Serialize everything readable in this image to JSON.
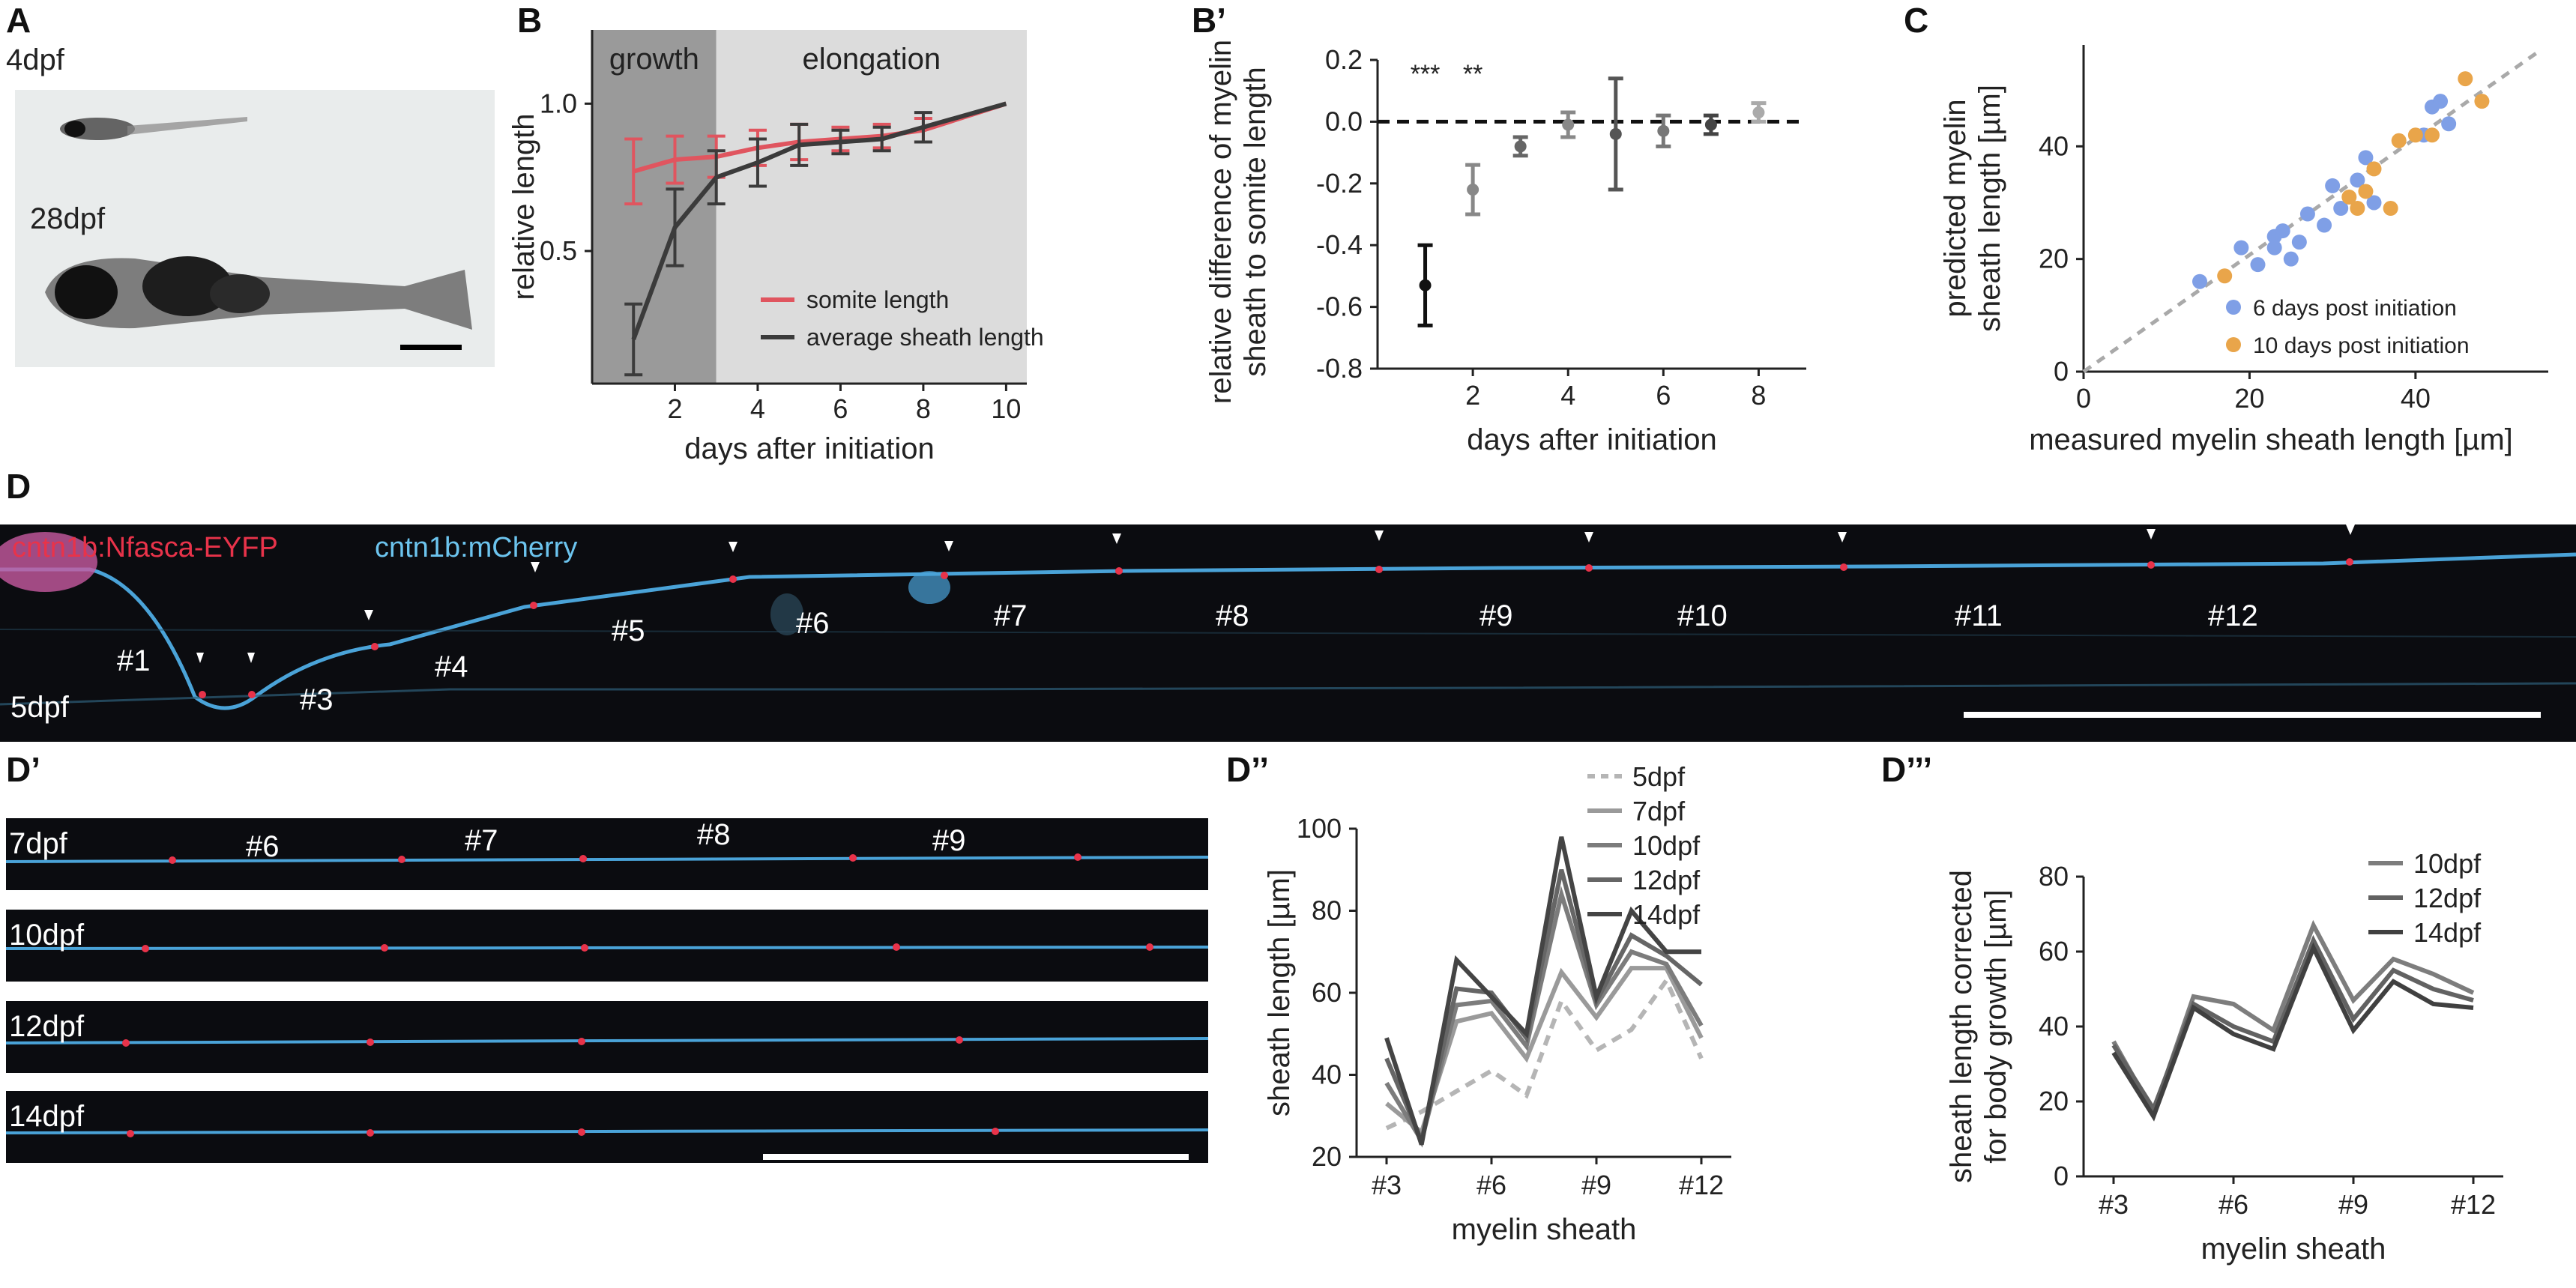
{
  "panels": {
    "A": {
      "letter": "A",
      "stage_small": "4dpf",
      "stage_large": "28dpf"
    },
    "B": {
      "letter": "B"
    },
    "Bp": {
      "letter": "B’"
    },
    "C": {
      "letter": "C"
    },
    "D": {
      "letter": "D",
      "marker_red": "cntn1b:Nfasca-EYFP",
      "marker_blue": "cntn1b:mCherry",
      "stage": "5dpf",
      "sheaths": [
        "#1",
        "#3",
        "#4",
        "#5",
        "#6",
        "#7",
        "#8",
        "#9",
        "#10",
        "#11",
        "#12"
      ]
    },
    "Dp": {
      "letter": "D’",
      "rows": [
        {
          "stage": "7dpf",
          "sheaths": [
            "#6",
            "#7",
            "#8",
            "#9"
          ]
        },
        {
          "stage": "10dpf",
          "sheaths": []
        },
        {
          "stage": "12dpf",
          "sheaths": []
        },
        {
          "stage": "14dpf",
          "sheaths": []
        }
      ]
    },
    "Dpp": {
      "letter": "D’’"
    },
    "Dppp": {
      "letter": "D’’’"
    }
  },
  "colors": {
    "somite": "#e0555f",
    "sheath": "#3b3b3b",
    "blue_dots": "#7f9fe6",
    "orange_dots": "#e9a54a",
    "dashed_fit": "#a9a9a9",
    "growth_shade": "#9a9a9a",
    "elongation_shade": "#dcdcdc",
    "axon_blue": "#4aa3d8",
    "node_red": "#e8334a"
  },
  "chart_data": [
    {
      "id": "B",
      "type": "line",
      "xlabel": "days after initiation",
      "ylabel": "relative length",
      "xlim": [
        0,
        10.5
      ],
      "ylim": [
        0.05,
        1.25
      ],
      "xticks": [
        2,
        4,
        6,
        8,
        10
      ],
      "yticks": [
        0.5,
        1.0
      ],
      "ytick_labels": [
        "0.5",
        "1.0"
      ],
      "regions": [
        {
          "label": "growth",
          "x0": 0,
          "x1": 3
        },
        {
          "label": "elongation",
          "x0": 3,
          "x1": 10.5
        }
      ],
      "series": [
        {
          "name": "somite length",
          "x": [
            1,
            2,
            3,
            4,
            5,
            6,
            7,
            8,
            10
          ],
          "y": [
            0.77,
            0.81,
            0.82,
            0.85,
            0.87,
            0.88,
            0.89,
            0.91,
            1.0
          ],
          "err": [
            0.11,
            0.08,
            0.07,
            0.06,
            0.06,
            0.04,
            0.04,
            0.04,
            0.0
          ]
        },
        {
          "name": "average sheath length",
          "x": [
            1,
            2,
            3,
            4,
            5,
            6,
            7,
            8,
            10
          ],
          "y": [
            0.2,
            0.58,
            0.75,
            0.8,
            0.86,
            0.87,
            0.88,
            0.92,
            1.0
          ],
          "err": [
            0.12,
            0.13,
            0.09,
            0.08,
            0.07,
            0.04,
            0.04,
            0.05,
            0.0
          ]
        }
      ]
    },
    {
      "id": "Bp",
      "type": "scatter",
      "xlabel": "days after initiation",
      "ylabel": "relative difference of myelin sheath to somite length",
      "ylabel_lines": [
        "relative difference of myelin",
        "sheath to somite length"
      ],
      "xlim": [
        0,
        9
      ],
      "ylim": [
        -0.8,
        0.2
      ],
      "xticks": [
        2,
        4,
        6,
        8
      ],
      "yticks": [
        0.2,
        0.0,
        -0.2,
        -0.4,
        -0.6,
        -0.8
      ],
      "ytick_labels": [
        "0.2",
        "0.0",
        "-0.2",
        "-0.4",
        "-0.6",
        "-0.8"
      ],
      "significance": [
        {
          "x": 1,
          "label": "***"
        },
        {
          "x": 2,
          "label": "**"
        }
      ],
      "points": [
        {
          "x": 1,
          "y": -0.53,
          "err": 0.13
        },
        {
          "x": 2,
          "y": -0.22,
          "err": 0.08
        },
        {
          "x": 3,
          "y": -0.08,
          "err": 0.03
        },
        {
          "x": 4,
          "y": -0.01,
          "err": 0.04
        },
        {
          "x": 5,
          "y": -0.04,
          "err": 0.18
        },
        {
          "x": 6,
          "y": -0.03,
          "err": 0.05
        },
        {
          "x": 7,
          "y": -0.01,
          "err": 0.03
        },
        {
          "x": 8,
          "y": 0.03,
          "err": 0.03
        }
      ]
    },
    {
      "id": "C",
      "type": "scatter",
      "xlabel": "measured myelin sheath length [µm]",
      "ylabel": "predicted myelin sheath length [µm]",
      "ylabel_lines": [
        "predicted  myelin",
        "sheath length [µm]"
      ],
      "xlim": [
        0,
        56
      ],
      "ylim": [
        0,
        58
      ],
      "xticks": [
        0,
        20,
        40
      ],
      "yticks": [
        0,
        20,
        40
      ],
      "series": [
        {
          "name": "6 days post initiation",
          "points": [
            [
              14,
              16
            ],
            [
              19,
              22
            ],
            [
              21,
              19
            ],
            [
              23,
              22
            ],
            [
              23,
              24
            ],
            [
              24,
              25
            ],
            [
              25,
              20
            ],
            [
              26,
              23
            ],
            [
              27,
              28
            ],
            [
              29,
              26
            ],
            [
              30,
              33
            ],
            [
              31,
              29
            ],
            [
              33,
              34
            ],
            [
              34,
              38
            ],
            [
              35,
              30
            ],
            [
              41,
              42
            ],
            [
              42,
              47
            ],
            [
              43,
              48
            ],
            [
              44,
              44
            ]
          ]
        },
        {
          "name": "10 days post initiation",
          "points": [
            [
              17,
              17
            ],
            [
              32,
              31
            ],
            [
              33,
              29
            ],
            [
              34,
              32
            ],
            [
              35,
              36
            ],
            [
              37,
              29
            ],
            [
              38,
              41
            ],
            [
              40,
              42
            ],
            [
              42,
              42
            ],
            [
              46,
              52
            ],
            [
              48,
              48
            ]
          ]
        }
      ],
      "fit": {
        "x": [
          0,
          55
        ],
        "y": [
          0,
          57
        ]
      }
    },
    {
      "id": "Dpp",
      "type": "line",
      "xlabel": "myelin sheath",
      "ylabel": "sheath length [µm]",
      "categories": [
        "#3",
        "#4",
        "#5",
        "#6",
        "#7",
        "#8",
        "#9",
        "#10",
        "#11",
        "#12"
      ],
      "xtick_labels": [
        "#3",
        "#6",
        "#9",
        "#12"
      ],
      "ylim": [
        20,
        100
      ],
      "yticks": [
        20,
        40,
        60,
        80,
        100
      ],
      "series": [
        {
          "name": "5dpf",
          "values": [
            27,
            31,
            36,
            41,
            35,
            58,
            46,
            51,
            63,
            44
          ],
          "dashed": true
        },
        {
          "name": "7dpf",
          "values": [
            33,
            26,
            53,
            55,
            44,
            65,
            54,
            66,
            66,
            49
          ]
        },
        {
          "name": "10dpf",
          "values": [
            38,
            24,
            57,
            58,
            47,
            84,
            57,
            70,
            67,
            52
          ]
        },
        {
          "name": "12dpf",
          "values": [
            44,
            24,
            61,
            60,
            49,
            90,
            58,
            74,
            69,
            62
          ]
        },
        {
          "name": "14dpf",
          "values": [
            49,
            23,
            68,
            59,
            50,
            98,
            59,
            80,
            70,
            70
          ]
        }
      ]
    },
    {
      "id": "Dppp",
      "type": "line",
      "xlabel": "myelin sheath",
      "ylabel": "sheath length corrected for body growth [µm]",
      "ylabel_lines": [
        "sheath length corrected",
        "for body growth [µm]"
      ],
      "categories": [
        "#3",
        "#4",
        "#5",
        "#6",
        "#7",
        "#8",
        "#9",
        "#10",
        "#11",
        "#12"
      ],
      "xtick_labels": [
        "#3",
        "#6",
        "#9",
        "#12"
      ],
      "ylim": [
        0,
        80
      ],
      "yticks": [
        0,
        20,
        40,
        60,
        80
      ],
      "series": [
        {
          "name": "10dpf",
          "values": [
            36,
            17,
            48,
            46,
            39,
            67,
            47,
            58,
            54,
            49
          ]
        },
        {
          "name": "12dpf",
          "values": [
            35,
            18,
            46,
            40,
            36,
            63,
            42,
            55,
            50,
            47
          ]
        },
        {
          "name": "14dpf",
          "values": [
            33,
            16,
            45,
            38,
            34,
            61,
            39,
            52,
            46,
            45
          ]
        }
      ]
    }
  ]
}
